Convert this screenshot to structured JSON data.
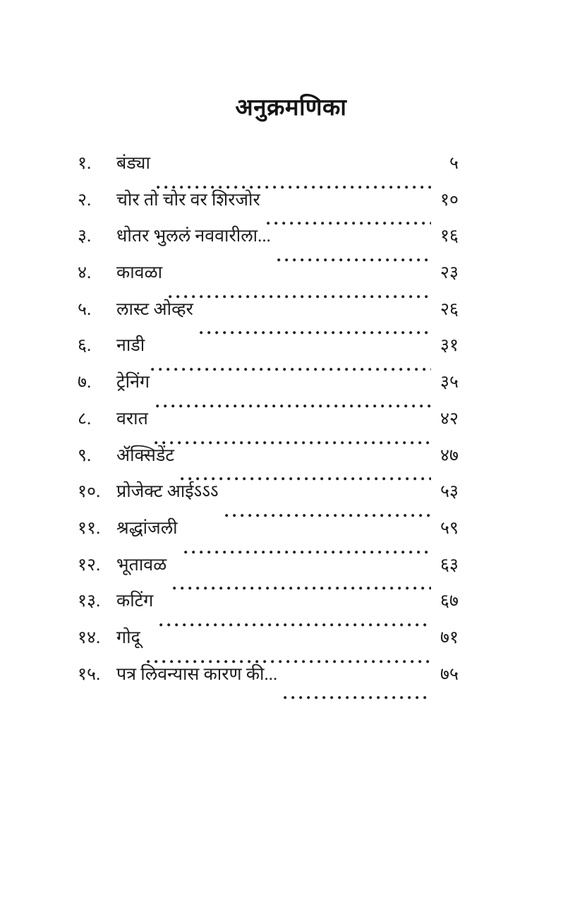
{
  "page": {
    "title": "अनुक्रमणिका"
  },
  "colors": {
    "text": "#1c1c1c",
    "background": "#ffffff"
  },
  "toc": {
    "entries": [
      {
        "number": "१.",
        "title": "बंड्या",
        "page": "५"
      },
      {
        "number": "२.",
        "title": "चोर तो चोर वर शिरजोर",
        "page": "१०"
      },
      {
        "number": "३.",
        "title": "धोतर भुललं नववारीला...",
        "page": "१६"
      },
      {
        "number": "४.",
        "title": "कावळा",
        "page": "२३"
      },
      {
        "number": "५.",
        "title": "लास्ट ओव्हर",
        "page": "२६"
      },
      {
        "number": "६.",
        "title": "नाडी",
        "page": "३१"
      },
      {
        "number": "७.",
        "title": "ट्रेनिंग",
        "page": "३५"
      },
      {
        "number": "८.",
        "title": "वरात",
        "page": "४२"
      },
      {
        "number": "९.",
        "title": "ॲक्सिडेंट",
        "page": "४७"
      },
      {
        "number": "१०.",
        "title": "प्रोजेक्ट आईऽऽऽ",
        "page": "५३"
      },
      {
        "number": "११.",
        "title": "श्रद्धांजली",
        "page": "५९"
      },
      {
        "number": "१२.",
        "title": "भूतावळ",
        "page": "६३"
      },
      {
        "number": "१३.",
        "title": "कटिंग",
        "page": "६७"
      },
      {
        "number": "१४.",
        "title": "गोदू",
        "page": "७१"
      },
      {
        "number": "१५.",
        "title": "पत्र लिवन्यास कारण की...",
        "page": "७५"
      }
    ]
  }
}
